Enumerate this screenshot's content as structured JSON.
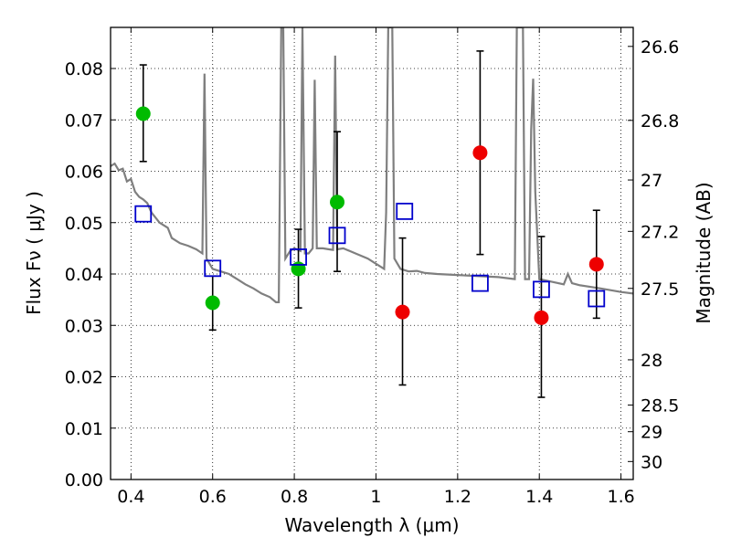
{
  "chart_data": {
    "type": "scatter",
    "xlabel": "Wavelength  λ (μm)",
    "ylabel": "Flux  Fν  ( μJy )",
    "ylabel_right": "Magnitude (AB)",
    "xlim": [
      0.35,
      1.63
    ],
    "ylim": [
      0.0,
      0.088
    ],
    "grid": true,
    "x_ticks": [
      0.4,
      0.6,
      0.8,
      1.0,
      1.2,
      1.4,
      1.6
    ],
    "x_tick_labels": [
      "0.4",
      "0.6",
      "0.8",
      "1",
      "1.2",
      "1.4",
      "1.6"
    ],
    "y_ticks": [
      0.0,
      0.01,
      0.02,
      0.03,
      0.04,
      0.05,
      0.06,
      0.07,
      0.08
    ],
    "y_tick_labels": [
      "0.00",
      "0.01",
      "0.02",
      "0.03",
      "0.04",
      "0.05",
      "0.06",
      "0.07",
      "0.08"
    ],
    "right_ticks": [
      {
        "label": "26.6",
        "flux": 0.0843
      },
      {
        "label": "26.8",
        "flux": 0.0699
      },
      {
        "label": "27",
        "flux": 0.0583
      },
      {
        "label": "27.2",
        "flux": 0.0483
      },
      {
        "label": "27.5",
        "flux": 0.0372
      },
      {
        "label": "28",
        "flux": 0.0233
      },
      {
        "label": "28.5",
        "flux": 0.0145
      },
      {
        "label": "29",
        "flux": 0.0093
      },
      {
        "label": "30",
        "flux": 0.0035
      }
    ],
    "series": [
      {
        "marker": "circle",
        "color": "#00bb00",
        "points": [
          {
            "x": 0.43,
            "y": 0.0712,
            "yerr_low": 0.0619,
            "yerr_high": 0.0807
          },
          {
            "x": 0.6,
            "y": 0.0344,
            "yerr_low": 0.0291,
            "yerr_high": 0.0396
          },
          {
            "x": 0.81,
            "y": 0.041,
            "yerr_low": 0.0334,
            "yerr_high": 0.0487
          },
          {
            "x": 0.905,
            "y": 0.054,
            "yerr_low": 0.0405,
            "yerr_high": 0.0677
          }
        ]
      },
      {
        "marker": "circle",
        "color": "#ee0000",
        "points": [
          {
            "x": 1.065,
            "y": 0.0326,
            "yerr_low": 0.0184,
            "yerr_high": 0.047
          },
          {
            "x": 1.255,
            "y": 0.0636,
            "yerr_low": 0.0438,
            "yerr_high": 0.0834
          },
          {
            "x": 1.405,
            "y": 0.0315,
            "yerr_low": 0.016,
            "yerr_high": 0.0473
          },
          {
            "x": 1.54,
            "y": 0.0419,
            "yerr_low": 0.0314,
            "yerr_high": 0.0524
          }
        ]
      },
      {
        "marker": "open-square",
        "color": "#0000cc",
        "points": [
          {
            "x": 0.43,
            "y": 0.0517
          },
          {
            "x": 0.6,
            "y": 0.0411
          },
          {
            "x": 0.81,
            "y": 0.0433
          },
          {
            "x": 0.905,
            "y": 0.0475
          },
          {
            "x": 1.07,
            "y": 0.0522
          },
          {
            "x": 1.255,
            "y": 0.0382
          },
          {
            "x": 1.405,
            "y": 0.037
          },
          {
            "x": 1.54,
            "y": 0.0352
          }
        ]
      },
      {
        "type": "line",
        "color": "#7f7f7f",
        "points": [
          [
            0.35,
            0.061
          ],
          [
            0.36,
            0.0615
          ],
          [
            0.37,
            0.0602
          ],
          [
            0.38,
            0.0605
          ],
          [
            0.39,
            0.058
          ],
          [
            0.4,
            0.0585
          ],
          [
            0.41,
            0.056
          ],
          [
            0.42,
            0.055
          ],
          [
            0.43,
            0.0545
          ],
          [
            0.44,
            0.0538
          ],
          [
            0.45,
            0.052
          ],
          [
            0.47,
            0.05
          ],
          [
            0.49,
            0.049
          ],
          [
            0.5,
            0.047
          ],
          [
            0.52,
            0.046
          ],
          [
            0.54,
            0.0455
          ],
          [
            0.56,
            0.0448
          ],
          [
            0.575,
            0.044
          ],
          [
            0.58,
            0.079
          ],
          [
            0.585,
            0.043
          ],
          [
            0.6,
            0.041
          ],
          [
            0.62,
            0.0405
          ],
          [
            0.64,
            0.04
          ],
          [
            0.66,
            0.039
          ],
          [
            0.68,
            0.038
          ],
          [
            0.7,
            0.0372
          ],
          [
            0.72,
            0.0362
          ],
          [
            0.74,
            0.0355
          ],
          [
            0.755,
            0.0345
          ],
          [
            0.762,
            0.0345
          ],
          [
            0.768,
            0.088
          ],
          [
            0.773,
            0.088
          ],
          [
            0.778,
            0.043
          ],
          [
            0.79,
            0.0445
          ],
          [
            0.8,
            0.045
          ],
          [
            0.815,
            0.0445
          ],
          [
            0.82,
            0.088
          ],
          [
            0.826,
            0.044
          ],
          [
            0.835,
            0.044
          ],
          [
            0.845,
            0.045
          ],
          [
            0.85,
            0.0778
          ],
          [
            0.855,
            0.045
          ],
          [
            0.87,
            0.045
          ],
          [
            0.885,
            0.0448
          ],
          [
            0.895,
            0.0447
          ],
          [
            0.9,
            0.0825
          ],
          [
            0.905,
            0.0448
          ],
          [
            0.92,
            0.045
          ],
          [
            0.95,
            0.044
          ],
          [
            0.98,
            0.043
          ],
          [
            1.0,
            0.042
          ],
          [
            1.02,
            0.041
          ],
          [
            1.025,
            0.052
          ],
          [
            1.03,
            0.088
          ],
          [
            1.04,
            0.088
          ],
          [
            1.045,
            0.043
          ],
          [
            1.06,
            0.041
          ],
          [
            1.08,
            0.0405
          ],
          [
            1.1,
            0.0406
          ],
          [
            1.12,
            0.0402
          ],
          [
            1.15,
            0.04
          ],
          [
            1.2,
            0.0398
          ],
          [
            1.25,
            0.0396
          ],
          [
            1.3,
            0.0394
          ],
          [
            1.34,
            0.039
          ],
          [
            1.345,
            0.088
          ],
          [
            1.36,
            0.088
          ],
          [
            1.365,
            0.039
          ],
          [
            1.375,
            0.039
          ],
          [
            1.38,
            0.068
          ],
          [
            1.385,
            0.078
          ],
          [
            1.39,
            0.056
          ],
          [
            1.4,
            0.039
          ],
          [
            1.43,
            0.0385
          ],
          [
            1.46,
            0.038
          ],
          [
            1.47,
            0.04
          ],
          [
            1.48,
            0.0382
          ],
          [
            1.5,
            0.0378
          ],
          [
            1.55,
            0.0372
          ],
          [
            1.6,
            0.0365
          ],
          [
            1.63,
            0.0362
          ]
        ]
      }
    ]
  }
}
